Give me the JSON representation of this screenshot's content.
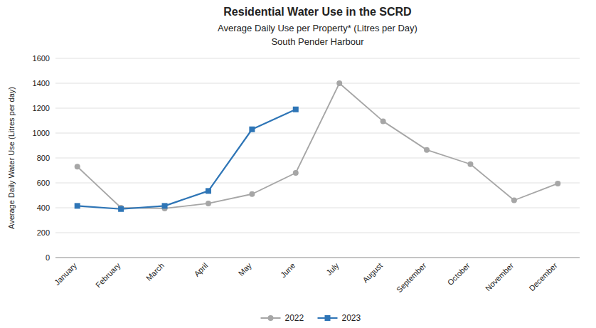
{
  "chart_data": {
    "type": "line",
    "title": "Residential Water Use in the SCRD",
    "subtitle": [
      "Average Daily Use per Property* (Litres per Day)",
      "South Pender Harbour"
    ],
    "y_label": "Average Daily Water Use (Litres per day)",
    "categories": [
      "January",
      "February",
      "March",
      "April",
      "May",
      "June",
      "July",
      "August",
      "September",
      "October",
      "November",
      "December"
    ],
    "series": [
      {
        "name": "2022",
        "color": "#a6a6a6",
        "marker": "circle",
        "values": [
          730,
          400,
          395,
          435,
          510,
          680,
          1400,
          1095,
          865,
          750,
          460,
          595
        ]
      },
      {
        "name": "2023",
        "color": "#2e75b6",
        "marker": "square",
        "values": [
          415,
          390,
          415,
          535,
          1030,
          1190,
          null,
          null,
          null,
          null,
          null,
          null
        ]
      }
    ],
    "ylim": [
      0,
      1600
    ],
    "yticks": [
      0,
      200,
      400,
      600,
      800,
      1000,
      1200,
      1400,
      1600
    ],
    "grid": true,
    "legend": "bottom"
  }
}
